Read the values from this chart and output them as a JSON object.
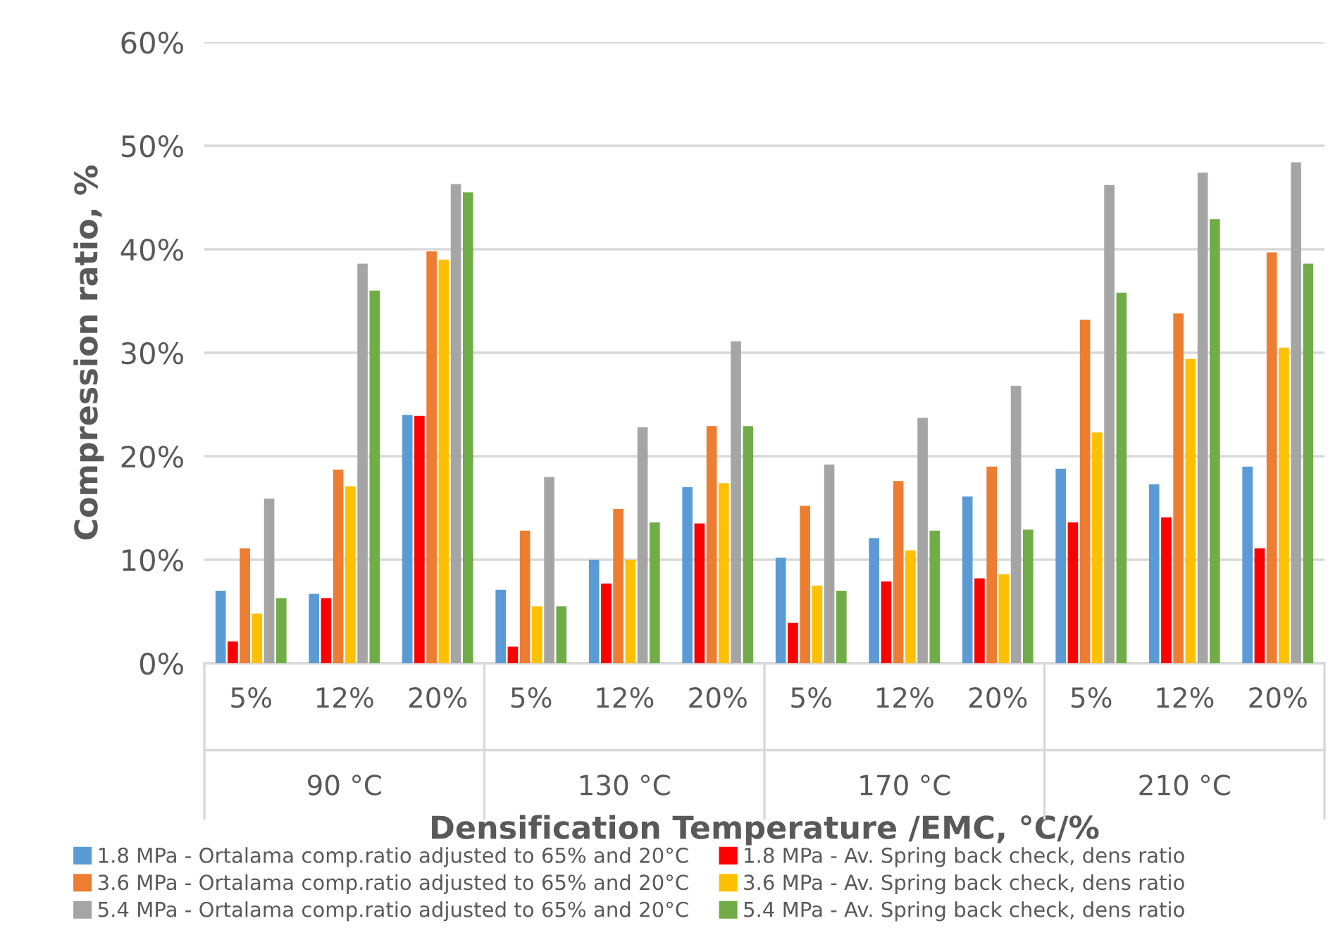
{
  "chart_data": {
    "type": "bar",
    "xlabel": "Densification Temperature /EMC, °C/%",
    "ylabel": "Compression ratio, %",
    "categories": [
      "5%",
      "12%",
      "20%",
      "5%",
      "12%",
      "20%",
      "5%",
      "12%",
      "20%",
      "5%",
      "12%",
      "20%"
    ],
    "annotations": [
      "90 °C",
      "130 °C",
      "170 °C",
      "210 °C"
    ],
    "series": [
      {
        "name": "1.8 MPa - Ortalama comp.ratio adjusted to 65% and 20°C",
        "color": "#5b9bd5",
        "values": [
          7.0,
          6.7,
          24.0,
          7.1,
          10.0,
          17.0,
          10.2,
          12.1,
          16.1,
          18.8,
          17.3,
          19.0
        ]
      },
      {
        "name": "1.8 MPa - Av. Spring back check, dens ratio",
        "color": "#ff0000",
        "values": [
          2.1,
          6.3,
          23.9,
          1.6,
          7.7,
          13.5,
          3.9,
          7.9,
          8.2,
          13.6,
          14.1,
          11.1
        ]
      },
      {
        "name": "3.6 MPa - Ortalama comp.ratio adjusted to 65% and 20°C",
        "color": "#ed7d31",
        "values": [
          11.1,
          18.7,
          39.8,
          12.8,
          14.9,
          22.9,
          15.2,
          17.6,
          19.0,
          33.2,
          33.8,
          39.7
        ]
      },
      {
        "name": "3.6 MPa - Av. Spring back check, dens ratio",
        "color": "#ffc000",
        "values": [
          4.8,
          17.1,
          39.0,
          5.5,
          10.0,
          17.4,
          7.5,
          10.9,
          8.6,
          22.3,
          29.4,
          30.5
        ]
      },
      {
        "name": "5.4 MPa - Ortalama comp.ratio adjusted to 65% and 20°C",
        "color": "#a5a5a5",
        "values": [
          15.9,
          38.6,
          46.3,
          18.0,
          22.8,
          31.1,
          19.2,
          23.7,
          26.8,
          46.2,
          47.4,
          48.4
        ]
      },
      {
        "name": "5.4 MPa - Av. Spring back check, dens ratio",
        "color": "#70ad47",
        "values": [
          6.3,
          36.0,
          45.5,
          5.5,
          13.6,
          22.9,
          7.0,
          12.8,
          12.9,
          35.8,
          42.9,
          38.6
        ]
      }
    ],
    "ylim": [
      0,
      60
    ],
    "yticks": [
      {
        "value": 0,
        "label": "0%"
      },
      {
        "value": 10,
        "label": "10%"
      },
      {
        "value": 20,
        "label": "20%"
      },
      {
        "value": 30,
        "label": "30%"
      },
      {
        "value": 40,
        "label": "40%"
      },
      {
        "value": 50,
        "label": "50%"
      },
      {
        "value": 60,
        "label": "60%"
      }
    ],
    "grid": "y",
    "legend": "bottom"
  }
}
